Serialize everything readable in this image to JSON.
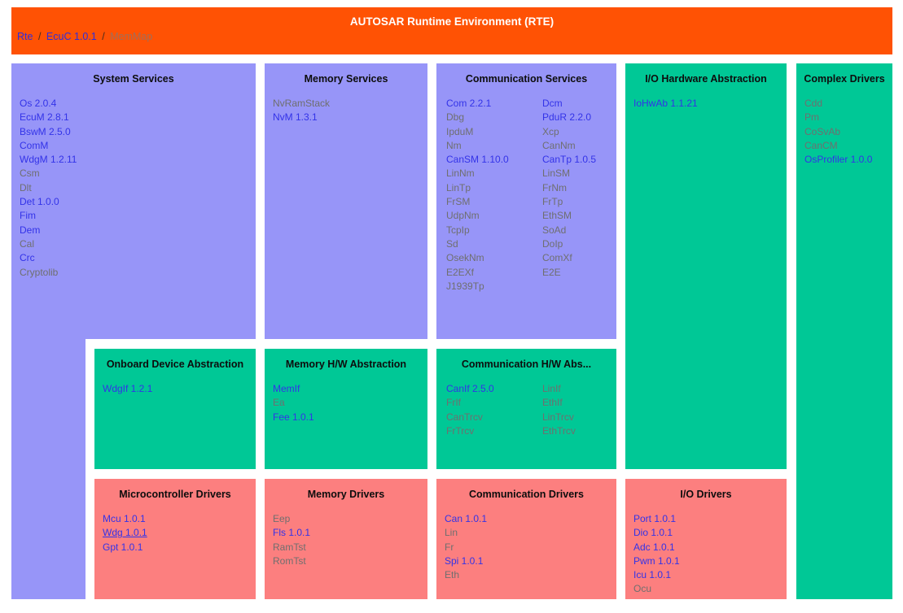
{
  "colors": {
    "banner_orange": "#ff5204",
    "services_purple": "#9795f8",
    "abstraction_green": "#00c896",
    "drivers_red": "#fc7f7f",
    "link_blue": "#3333e8",
    "inactive_gray": "#6f6f6f",
    "banner_title_white": "#ffffff"
  },
  "banner": {
    "title": "AUTOSAR Runtime Environment (RTE)",
    "separator": "/",
    "breadcrumb": {
      "rte": "Rte",
      "ecuc": "EcuC 1.0.1",
      "memmap": "MemMap"
    }
  },
  "blocks": {
    "system_services": {
      "title": "System Services",
      "items": [
        {
          "label": "Os 2.0.4",
          "link": true
        },
        {
          "label": "EcuM 2.8.1",
          "link": true
        },
        {
          "label": "BswM 2.5.0",
          "link": true
        },
        {
          "label": "ComM",
          "link": true
        },
        {
          "label": "WdgM 1.2.11",
          "link": true
        },
        {
          "label": "Csm",
          "link": false
        },
        {
          "label": "Dlt",
          "link": false
        },
        {
          "label": "Det 1.0.0",
          "link": true
        },
        {
          "label": "Fim",
          "link": true
        },
        {
          "label": "Dem",
          "link": true
        },
        {
          "label": "Cal",
          "link": false
        },
        {
          "label": "Crc",
          "link": true
        },
        {
          "label": "Cryptolib",
          "link": false
        }
      ]
    },
    "memory_services": {
      "title": "Memory Services",
      "items": [
        {
          "label": "NvRamStack",
          "link": false
        },
        {
          "label": "NvM 1.3.1",
          "link": true
        }
      ]
    },
    "communication_services": {
      "title": "Communication Services",
      "columns": [
        [
          {
            "label": "Com 2.2.1",
            "link": true
          },
          {
            "label": "Dbg",
            "link": false
          },
          {
            "label": "IpduM",
            "link": false
          },
          {
            "label": "Nm",
            "link": false
          },
          {
            "label": "CanSM 1.10.0",
            "link": true
          },
          {
            "label": "LinNm",
            "link": false
          },
          {
            "label": "LinTp",
            "link": false
          },
          {
            "label": "FrSM",
            "link": false
          },
          {
            "label": "UdpNm",
            "link": false
          },
          {
            "label": "TcpIp",
            "link": false
          },
          {
            "label": "Sd",
            "link": false
          },
          {
            "label": "OsekNm",
            "link": false
          },
          {
            "label": "E2EXf",
            "link": false
          },
          {
            "label": "J1939Tp",
            "link": false
          }
        ],
        [
          {
            "label": "Dcm",
            "link": true
          },
          {
            "label": "PduR 2.2.0",
            "link": true
          },
          {
            "label": "Xcp",
            "link": false
          },
          {
            "label": "CanNm",
            "link": false
          },
          {
            "label": "CanTp 1.0.5",
            "link": true
          },
          {
            "label": "LinSM",
            "link": false
          },
          {
            "label": "FrNm",
            "link": false
          },
          {
            "label": "FrTp",
            "link": false
          },
          {
            "label": "EthSM",
            "link": false
          },
          {
            "label": "SoAd",
            "link": false
          },
          {
            "label": "DoIp",
            "link": false
          },
          {
            "label": "ComXf",
            "link": false
          },
          {
            "label": "E2E",
            "link": false
          }
        ]
      ]
    },
    "io_hw_abstraction": {
      "title": "I/O Hardware Abstraction",
      "items": [
        {
          "label": "IoHwAb 1.1.21",
          "link": true
        }
      ]
    },
    "complex_drivers": {
      "title": "Complex Drivers",
      "items": [
        {
          "label": "Cdd",
          "link": false
        },
        {
          "label": "Pm",
          "link": false
        },
        {
          "label": "CoSvAb",
          "link": false
        },
        {
          "label": "CanCM",
          "link": false
        },
        {
          "label": "OsProfiler 1.0.0",
          "link": true
        }
      ]
    },
    "onboard_device_abstraction": {
      "title": "Onboard Device Abstraction",
      "items": [
        {
          "label": "WdgIf 1.2.1",
          "link": true
        }
      ]
    },
    "memory_hw_abstraction": {
      "title": "Memory H/W Abstraction",
      "items": [
        {
          "label": "MemIf",
          "link": true
        },
        {
          "label": "Ea",
          "link": false
        },
        {
          "label": "Fee 1.0.1",
          "link": true
        }
      ]
    },
    "communication_hw_abstraction": {
      "title": "Communication H/W Abs...",
      "columns": [
        [
          {
            "label": "CanIf 2.5.0",
            "link": true
          },
          {
            "label": "FrIf",
            "link": false
          },
          {
            "label": "CanTrcv",
            "link": false
          },
          {
            "label": "FrTrcv",
            "link": false
          }
        ],
        [
          {
            "label": "LinIf",
            "link": false
          },
          {
            "label": "EthIf",
            "link": false
          },
          {
            "label": "LinTrcv",
            "link": false
          },
          {
            "label": "EthTrcv",
            "link": false
          }
        ]
      ]
    },
    "microcontroller_drivers": {
      "title": "Microcontroller Drivers",
      "items": [
        {
          "label": "Mcu 1.0.1",
          "link": true
        },
        {
          "label": "Wdg 1.0.1",
          "link": true,
          "underline": true
        },
        {
          "label": "Gpt 1.0.1",
          "link": true
        }
      ]
    },
    "memory_drivers": {
      "title": "Memory Drivers",
      "items": [
        {
          "label": "Eep",
          "link": false
        },
        {
          "label": "Fls 1.0.1",
          "link": true
        },
        {
          "label": "RamTst",
          "link": false
        },
        {
          "label": "RomTst",
          "link": false
        }
      ]
    },
    "communication_drivers": {
      "title": "Communication Drivers",
      "items": [
        {
          "label": "Can 1.0.1",
          "link": true
        },
        {
          "label": "Lin",
          "link": false
        },
        {
          "label": "Fr",
          "link": false
        },
        {
          "label": "Spi 1.0.1",
          "link": true
        },
        {
          "label": "Eth",
          "link": false
        }
      ]
    },
    "io_drivers": {
      "title": "I/O Drivers",
      "items": [
        {
          "label": "Port 1.0.1",
          "link": true
        },
        {
          "label": "Dio 1.0.1",
          "link": true
        },
        {
          "label": "Adc 1.0.1",
          "link": true
        },
        {
          "label": "Pwm 1.0.1",
          "link": true
        },
        {
          "label": "Icu 1.0.1",
          "link": true
        },
        {
          "label": "Ocu",
          "link": false
        }
      ]
    }
  }
}
